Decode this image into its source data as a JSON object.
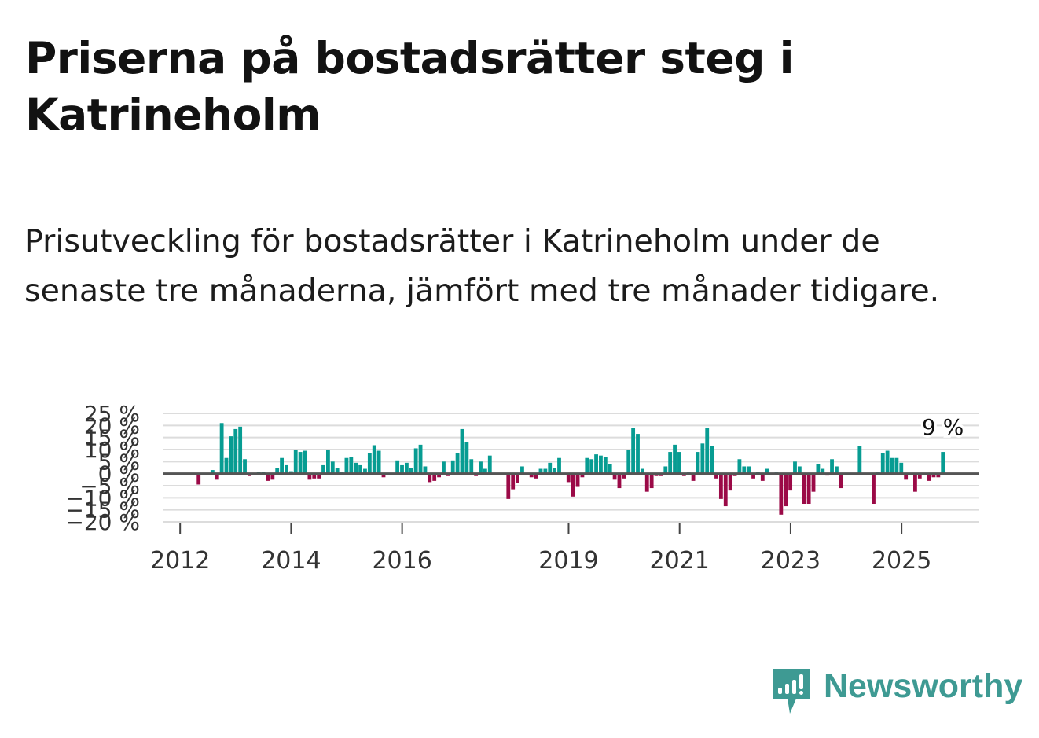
{
  "header": {
    "title": "Priserna på bostadsrätter steg i Katrineholm",
    "subtitle": "Prisutveckling för bostadsrätter i Katrineholm under de senaste tre månaderna, jämfört med tre månader tidigare."
  },
  "brand": {
    "name": "Newsworthy",
    "color": "#3e9a93"
  },
  "colors": {
    "positive": "#079c92",
    "negative": "#9b0a47",
    "grid": "#dcdcdc",
    "zero_line": "#555555"
  },
  "chart_data": {
    "type": "bar",
    "title": "Priserna på bostadsrätter steg i Katrineholm",
    "xlabel": "",
    "ylabel": "",
    "ylim": [
      -20,
      25
    ],
    "y_ticks": [
      "25 %",
      "20 %",
      "15 %",
      "10 %",
      "5 %",
      "0 %",
      "−5 %",
      "−10 %",
      "−15 %",
      "−20 %"
    ],
    "y_tick_values": [
      25,
      20,
      15,
      10,
      5,
      0,
      -5,
      -10,
      -15,
      -20
    ],
    "x_ticks": [
      "2012",
      "2014",
      "2016",
      "2019",
      "2021",
      "2023",
      "2025"
    ],
    "x_tick_positions": [
      2012.0,
      2014.0,
      2016.0,
      2019.0,
      2021.0,
      2023.0,
      2025.0
    ],
    "x_range": [
      2011.7,
      2026.4
    ],
    "start": 2012.0,
    "step": 0.0833,
    "last_label": "9 %",
    "values": [
      0,
      0,
      0,
      0,
      -4.5,
      0,
      0,
      1.5,
      -2.5,
      21,
      6.5,
      15.5,
      18.5,
      19.5,
      6,
      -1,
      0,
      0.8,
      0.8,
      -3,
      -2.5,
      2.5,
      6.5,
      3.5,
      1,
      10,
      9,
      9.5,
      -2.5,
      -2,
      -2,
      3.5,
      10,
      5,
      2.5,
      0.5,
      6.5,
      7,
      4.5,
      3.5,
      2,
      8.5,
      11.8,
      9.5,
      -1.5,
      0,
      0,
      5.5,
      3.5,
      4.5,
      2.5,
      10.5,
      12,
      3,
      -3.5,
      -3,
      -1.5,
      5,
      -1,
      5.5,
      8.5,
      18.5,
      13,
      6,
      -1,
      5,
      2,
      7.5,
      0,
      0,
      0,
      -10.5,
      -6.5,
      -4,
      3,
      0,
      -1.5,
      -2,
      2,
      2,
      4.5,
      2.5,
      6.5,
      0,
      -3.5,
      -9.5,
      -5.5,
      -1.5,
      6.5,
      6,
      8,
      7.5,
      7,
      4,
      -2.5,
      -6,
      -2,
      10,
      19,
      16.5,
      2,
      -7.5,
      -6,
      -1,
      -1,
      3,
      9,
      12,
      9,
      -1,
      0.5,
      -3,
      9,
      12.5,
      19,
      11.5,
      -2,
      -10.5,
      -13.5,
      -7,
      -1,
      6,
      3,
      3,
      -2,
      0.8,
      -3,
      2,
      0,
      0.5,
      -17,
      -13.5,
      -7,
      5,
      3,
      -12.5,
      -12.5,
      -7.5,
      4,
      2,
      -0.8,
      6,
      3,
      -6,
      0,
      0,
      0,
      11.5,
      0,
      0,
      -12.5,
      0.5,
      8.5,
      9.5,
      6.5,
      6.5,
      4.5,
      -2.5,
      0,
      -7.5,
      -2,
      0,
      -3,
      -1.5,
      -1.5,
      9
    ]
  }
}
